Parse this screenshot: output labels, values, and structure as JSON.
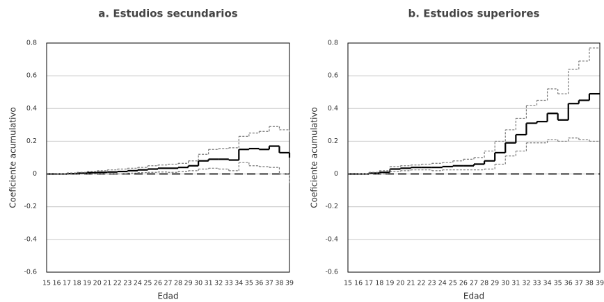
{
  "chart_data": [
    {
      "type": "step",
      "title": "a. Estudios secundarios",
      "x_label": "Edad",
      "y_label": "Coeficiente acumulativo",
      "categories": [
        "15",
        "16",
        "17",
        "18",
        "19",
        "20",
        "21",
        "22",
        "23",
        "24",
        "25",
        "26",
        "27",
        "28",
        "29",
        "30",
        "31",
        "32",
        "33",
        "34",
        "35",
        "36",
        "37",
        "38",
        "39"
      ],
      "series": [
        {
          "color": "#000000",
          "dashed": false,
          "width": 2.2,
          "values": [
            0,
            0,
            0.002,
            0.005,
            0.008,
            0.01,
            0.012,
            0.015,
            0.02,
            0.025,
            0.03,
            0.035,
            0.035,
            0.04,
            0.05,
            0.08,
            0.09,
            0.09,
            0.085,
            0.15,
            0.155,
            0.15,
            0.17,
            0.13,
            0.1
          ]
        },
        {
          "color": "#777777",
          "dashed": true,
          "width": 1.2,
          "values": [
            0,
            0.002,
            0.006,
            0.01,
            0.015,
            0.02,
            0.025,
            0.03,
            0.035,
            0.04,
            0.05,
            0.055,
            0.06,
            0.065,
            0.08,
            0.12,
            0.15,
            0.155,
            0.16,
            0.23,
            0.25,
            0.26,
            0.29,
            0.27,
            0.25
          ]
        },
        {
          "color": "#777777",
          "dashed": true,
          "width": 1.2,
          "values": [
            0,
            -0.002,
            -0.002,
            0,
            0,
            0,
            0,
            0,
            0.005,
            0.008,
            0.01,
            0.012,
            0.01,
            0.015,
            0.02,
            0.03,
            0.035,
            0.03,
            0.02,
            0.07,
            0.05,
            0.045,
            0.04,
            0,
            -0.06
          ]
        }
      ],
      "ylim": [
        -0.6,
        0.8
      ],
      "yticks": [
        0.8,
        0.6,
        0.4,
        0.2,
        0,
        -0.2,
        -0.4,
        -0.6
      ],
      "grid": true,
      "zero_line": true
    },
    {
      "type": "step",
      "title": "b. Estudios superiores",
      "x_label": "Edad",
      "y_label": "Coeficiente acumulativo",
      "categories": [
        "15",
        "16",
        "17",
        "18",
        "19",
        "20",
        "21",
        "22",
        "23",
        "24",
        "25",
        "26",
        "27",
        "28",
        "29",
        "30",
        "31",
        "32",
        "33",
        "34",
        "35",
        "36",
        "37",
        "38",
        "39"
      ],
      "series": [
        {
          "color": "#000000",
          "dashed": false,
          "width": 2.2,
          "values": [
            0,
            0,
            0.005,
            0.01,
            0.03,
            0.035,
            0.04,
            0.04,
            0.04,
            0.045,
            0.05,
            0.05,
            0.06,
            0.08,
            0.13,
            0.19,
            0.24,
            0.31,
            0.32,
            0.37,
            0.33,
            0.43,
            0.45,
            0.49,
            null
          ]
        },
        {
          "color": "#777777",
          "dashed": true,
          "width": 1.2,
          "values": [
            0,
            0.002,
            0.01,
            0.02,
            0.045,
            0.05,
            0.055,
            0.06,
            0.065,
            0.07,
            0.08,
            0.09,
            0.1,
            0.14,
            0.2,
            0.27,
            0.34,
            0.42,
            0.45,
            0.52,
            0.49,
            0.64,
            0.69,
            0.77,
            null
          ]
        },
        {
          "color": "#777777",
          "dashed": true,
          "width": 1.2,
          "values": [
            0,
            -0.002,
            0,
            0,
            0.015,
            0.02,
            0.025,
            0.025,
            0.02,
            0.025,
            0.025,
            0.025,
            0.025,
            0.03,
            0.06,
            0.11,
            0.14,
            0.19,
            0.19,
            0.21,
            0.2,
            0.22,
            0.21,
            0.2,
            null
          ]
        }
      ],
      "ylim": [
        -0.6,
        0.8
      ],
      "yticks": [
        0.8,
        0.6,
        0.4,
        0.2,
        0,
        -0.2,
        -0.4,
        -0.6
      ],
      "grid": true,
      "zero_line": true
    }
  ]
}
